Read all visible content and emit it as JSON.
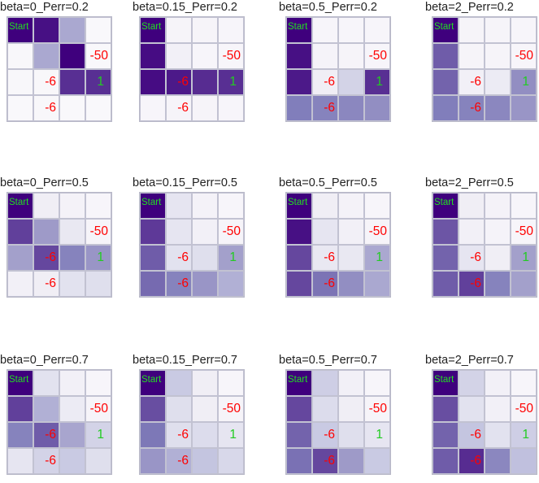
{
  "chart_data": {
    "type": "heatmap",
    "grid_rows": 4,
    "grid_cols": 4,
    "colormap": "Purples",
    "value_range": [
      0,
      1
    ],
    "colors": {
      "light": "#fcfbfd",
      "dark": "#3f007d",
      "negative_label": "#ff0000",
      "positive_label": "#22cc22",
      "start_label": "#22dd22",
      "cell_border": "#c2c2d2"
    },
    "labels": {
      "start": "Start",
      "penalty_a": "-50",
      "penalty_b": "-6",
      "goal": "1"
    },
    "label_cells": [
      {
        "row": 0,
        "col": 0,
        "key": "start",
        "kind": "start"
      },
      {
        "row": 1,
        "col": 3,
        "key": "penalty_a",
        "kind": "penalty"
      },
      {
        "row": 2,
        "col": 1,
        "key": "penalty_b",
        "kind": "penalty"
      },
      {
        "row": 2,
        "col": 3,
        "key": "goal",
        "kind": "goal"
      },
      {
        "row": 3,
        "col": 1,
        "key": "penalty_b",
        "kind": "penalty"
      }
    ],
    "panels": [
      {
        "title": "beta=0_Perr=0.2",
        "values": [
          [
            1.0,
            0.95,
            0.45,
            0.03
          ],
          [
            0.04,
            0.45,
            1.0,
            0.03
          ],
          [
            0.04,
            0.04,
            0.85,
            0.85
          ],
          [
            0.03,
            0.04,
            0.03,
            0.03
          ]
        ]
      },
      {
        "title": "beta=0.15_Perr=0.2",
        "values": [
          [
            1.0,
            0.06,
            0.06,
            0.05
          ],
          [
            0.96,
            0.1,
            0.05,
            0.05
          ],
          [
            0.96,
            0.92,
            0.86,
            0.85
          ],
          [
            0.05,
            0.06,
            0.06,
            0.05
          ]
        ]
      },
      {
        "title": "beta=0.5_Perr=0.2",
        "values": [
          [
            1.0,
            0.05,
            0.05,
            0.05
          ],
          [
            0.95,
            0.07,
            0.06,
            0.05
          ],
          [
            0.92,
            0.12,
            0.28,
            0.85
          ],
          [
            0.62,
            0.6,
            0.58,
            0.55
          ]
        ]
      },
      {
        "title": "beta=2_Perr=0.2",
        "values": [
          [
            1.0,
            0.06,
            0.06,
            0.05
          ],
          [
            0.72,
            0.06,
            0.06,
            0.05
          ],
          [
            0.7,
            0.1,
            0.14,
            0.55
          ],
          [
            0.62,
            0.6,
            0.58,
            0.52
          ]
        ]
      },
      {
        "title": "beta=0_Perr=0.5",
        "values": [
          [
            1.0,
            0.12,
            0.08,
            0.05
          ],
          [
            0.8,
            0.5,
            0.16,
            0.06
          ],
          [
            0.48,
            0.78,
            0.6,
            0.52
          ],
          [
            0.1,
            0.12,
            0.2,
            0.22
          ]
        ]
      },
      {
        "title": "beta=0.15_Perr=0.5",
        "values": [
          [
            1.0,
            0.18,
            0.08,
            0.05
          ],
          [
            0.82,
            0.18,
            0.1,
            0.06
          ],
          [
            0.72,
            0.2,
            0.22,
            0.48
          ],
          [
            0.68,
            0.6,
            0.52,
            0.42
          ]
        ]
      },
      {
        "title": "beta=0.5_Perr=0.5",
        "values": [
          [
            1.0,
            0.12,
            0.08,
            0.05
          ],
          [
            0.95,
            0.18,
            0.1,
            0.06
          ],
          [
            0.78,
            0.16,
            0.16,
            0.45
          ],
          [
            0.78,
            0.65,
            0.55,
            0.45
          ]
        ]
      },
      {
        "title": "beta=2_Perr=0.5",
        "values": [
          [
            1.0,
            0.12,
            0.08,
            0.05
          ],
          [
            0.74,
            0.1,
            0.07,
            0.05
          ],
          [
            0.7,
            0.18,
            0.12,
            0.48
          ],
          [
            0.72,
            0.8,
            0.6,
            0.48
          ]
        ]
      },
      {
        "title": "beta=0_Perr=0.7",
        "values": [
          [
            1.0,
            0.2,
            0.1,
            0.05
          ],
          [
            0.8,
            0.42,
            0.14,
            0.06
          ],
          [
            0.6,
            0.72,
            0.46,
            0.28
          ],
          [
            0.18,
            0.28,
            0.32,
            0.22
          ]
        ]
      },
      {
        "title": "beta=0.15_Perr=0.7",
        "values": [
          [
            1.0,
            0.32,
            0.12,
            0.05
          ],
          [
            0.76,
            0.22,
            0.12,
            0.06
          ],
          [
            0.64,
            0.22,
            0.24,
            0.18
          ],
          [
            0.52,
            0.42,
            0.34,
            0.26
          ]
        ]
      },
      {
        "title": "beta=0.5_Perr=0.7",
        "values": [
          [
            1.0,
            0.3,
            0.1,
            0.05
          ],
          [
            0.78,
            0.24,
            0.12,
            0.06
          ],
          [
            0.7,
            0.32,
            0.22,
            0.18
          ],
          [
            0.66,
            0.78,
            0.5,
            0.32
          ]
        ]
      },
      {
        "title": "beta=2_Perr=0.7",
        "values": [
          [
            1.0,
            0.28,
            0.1,
            0.05
          ],
          [
            0.76,
            0.2,
            0.1,
            0.06
          ],
          [
            0.7,
            0.34,
            0.2,
            0.3
          ],
          [
            0.72,
            0.86,
            0.58,
            0.36
          ]
        ]
      }
    ]
  }
}
